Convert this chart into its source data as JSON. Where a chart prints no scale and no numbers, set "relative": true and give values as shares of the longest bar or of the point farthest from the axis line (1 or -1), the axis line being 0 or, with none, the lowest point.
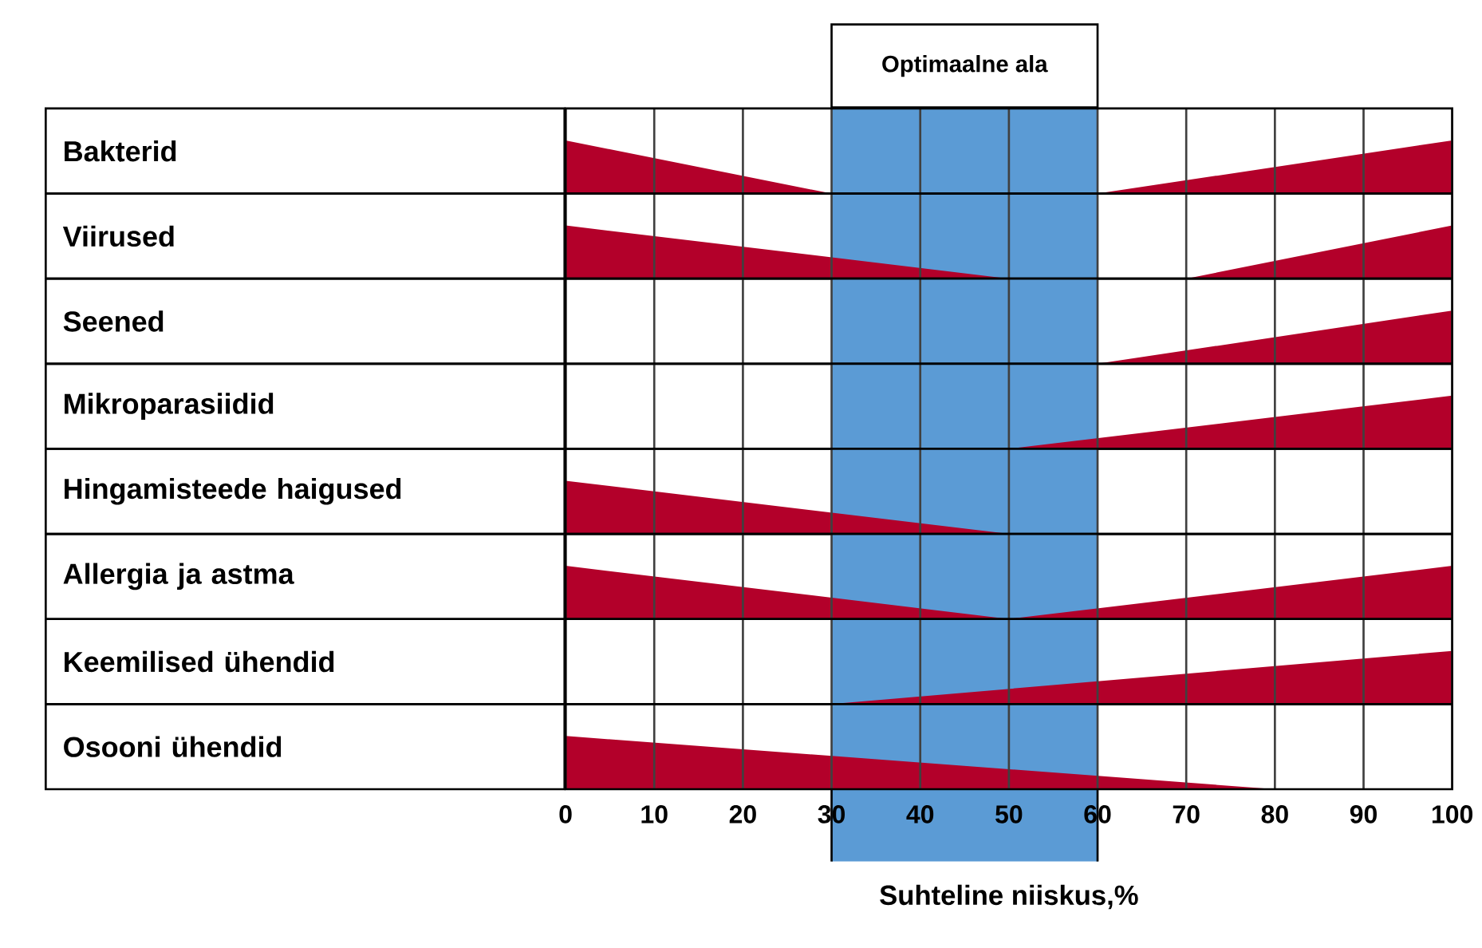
{
  "chart_data": [
    {
      "type": "area",
      "relative": true,
      "ylabel": "Bakterid",
      "xlim": [
        0,
        100
      ],
      "xticks": [
        0,
        10,
        20,
        30,
        40,
        50,
        60,
        70,
        80,
        90,
        100
      ],
      "grid": "x",
      "tick_labels": false,
      "bands": [
        {
          "axis": "x",
          "from": 30,
          "to": 60,
          "label": "Optimaalne ala",
          "color": "#5b9bd5"
        }
      ],
      "series": [
        {
          "color": "#b3002a",
          "x": [
            0,
            30,
            60,
            100
          ],
          "values": [
            1,
            0,
            0,
            1
          ]
        }
      ]
    },
    {
      "type": "area",
      "relative": true,
      "ylabel": "Viirused",
      "xlim": [
        0,
        100
      ],
      "xticks": [
        0,
        10,
        20,
        30,
        40,
        50,
        60,
        70,
        80,
        90,
        100
      ],
      "grid": "x",
      "tick_labels": false,
      "bands": [
        {
          "axis": "x",
          "from": 30,
          "to": 60,
          "color": "#5b9bd5"
        }
      ],
      "series": [
        {
          "color": "#b3002a",
          "x": [
            0,
            50,
            70,
            100
          ],
          "values": [
            1,
            0,
            0,
            1
          ]
        }
      ]
    },
    {
      "type": "area",
      "relative": true,
      "ylabel": "Seened",
      "xlim": [
        0,
        100
      ],
      "xticks": [
        0,
        10,
        20,
        30,
        40,
        50,
        60,
        70,
        80,
        90,
        100
      ],
      "grid": "x",
      "tick_labels": false,
      "bands": [
        {
          "axis": "x",
          "from": 30,
          "to": 60,
          "color": "#5b9bd5"
        }
      ],
      "series": [
        {
          "color": "#b3002a",
          "x": [
            0,
            60,
            100
          ],
          "values": [
            0,
            0,
            1
          ]
        }
      ]
    },
    {
      "type": "area",
      "relative": true,
      "ylabel": "Mikroparasiidid",
      "xlim": [
        0,
        100
      ],
      "xticks": [
        0,
        10,
        20,
        30,
        40,
        50,
        60,
        70,
        80,
        90,
        100
      ],
      "grid": "x",
      "tick_labels": false,
      "bands": [
        {
          "axis": "x",
          "from": 30,
          "to": 60,
          "color": "#5b9bd5"
        }
      ],
      "series": [
        {
          "color": "#b3002a",
          "x": [
            0,
            50,
            100
          ],
          "values": [
            0,
            0,
            1
          ]
        }
      ]
    },
    {
      "type": "area",
      "relative": true,
      "ylabel": "Hingamisteede haigused",
      "xlim": [
        0,
        100
      ],
      "xticks": [
        0,
        10,
        20,
        30,
        40,
        50,
        60,
        70,
        80,
        90,
        100
      ],
      "grid": "x",
      "tick_labels": false,
      "bands": [
        {
          "axis": "x",
          "from": 30,
          "to": 60,
          "color": "#5b9bd5"
        }
      ],
      "series": [
        {
          "color": "#b3002a",
          "x": [
            0,
            50,
            100
          ],
          "values": [
            1,
            0,
            0
          ]
        }
      ]
    },
    {
      "type": "area",
      "relative": true,
      "ylabel": "Allergia ja astma",
      "xlim": [
        0,
        100
      ],
      "xticks": [
        0,
        10,
        20,
        30,
        40,
        50,
        60,
        70,
        80,
        90,
        100
      ],
      "grid": "x",
      "tick_labels": false,
      "bands": [
        {
          "axis": "x",
          "from": 30,
          "to": 60,
          "color": "#5b9bd5"
        }
      ],
      "series": [
        {
          "color": "#b3002a",
          "x": [
            0,
            50,
            100
          ],
          "values": [
            1,
            0,
            1
          ]
        }
      ]
    },
    {
      "type": "area",
      "relative": true,
      "ylabel": "Keemilised ühendid",
      "xlim": [
        0,
        100
      ],
      "xticks": [
        0,
        10,
        20,
        30,
        40,
        50,
        60,
        70,
        80,
        90,
        100
      ],
      "grid": "x",
      "tick_labels": false,
      "bands": [
        {
          "axis": "x",
          "from": 30,
          "to": 60,
          "color": "#5b9bd5"
        }
      ],
      "series": [
        {
          "color": "#b3002a",
          "x": [
            0,
            30,
            100
          ],
          "values": [
            0,
            0,
            1
          ]
        }
      ]
    },
    {
      "type": "area",
      "relative": true,
      "ylabel": "Osooni ühendid",
      "xlabel": "Suhteline niiskus,%",
      "xlim": [
        0,
        100
      ],
      "xticks": [
        0,
        10,
        20,
        30,
        40,
        50,
        60,
        70,
        80,
        90,
        100
      ],
      "grid": "x",
      "tick_labels": "x",
      "bands": [
        {
          "axis": "x",
          "from": 30,
          "to": 60,
          "color": "#5b9bd5"
        }
      ],
      "series": [
        {
          "color": "#b3002a",
          "x": [
            0,
            80,
            100
          ],
          "values": [
            1,
            0,
            0
          ]
        }
      ]
    }
  ]
}
